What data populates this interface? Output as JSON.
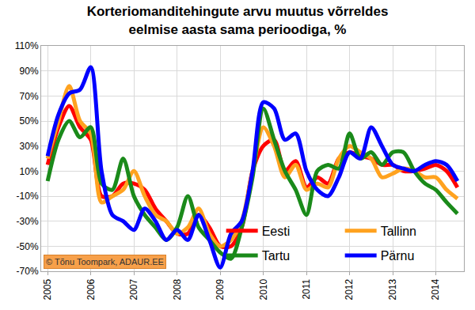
{
  "chart_data": {
    "type": "line",
    "title": "Korteriomanditehingute arvu muutus võrreldes\neelmise aasta sama perioodiga, %",
    "annotations": [
      "© Tõnu Toompark, ADAUR.EE"
    ],
    "categories": [
      "2005",
      null,
      null,
      null,
      "2006",
      null,
      null,
      null,
      "2007",
      null,
      null,
      null,
      "2008",
      null,
      null,
      null,
      "2009",
      null,
      null,
      null,
      "2010",
      null,
      null,
      null,
      "2011",
      null,
      null,
      null,
      "2012",
      null,
      null,
      null,
      "2013",
      null,
      null,
      null,
      "2014",
      null,
      null
    ],
    "series": [
      {
        "name": "Eesti",
        "color": "#ff0000",
        "values": [
          15,
          45,
          62,
          45,
          35,
          -10,
          -10,
          0,
          0,
          -5,
          -20,
          -30,
          -40,
          -40,
          -25,
          -35,
          -50,
          -50,
          -35,
          10,
          30,
          35,
          10,
          18,
          -3,
          5,
          0,
          20,
          25,
          22,
          20,
          15,
          15,
          10,
          10,
          12,
          15,
          10,
          -3
        ]
      },
      {
        "name": "Tallinn",
        "color": "#ffa21f",
        "values": [
          20,
          50,
          78,
          50,
          40,
          -15,
          -10,
          -5,
          10,
          -10,
          -25,
          -30,
          -40,
          -35,
          -20,
          -40,
          -50,
          -45,
          -30,
          10,
          45,
          30,
          5,
          15,
          -5,
          0,
          -3,
          20,
          30,
          25,
          20,
          5,
          8,
          12,
          10,
          5,
          5,
          -5,
          -12
        ]
      },
      {
        "name": "Tartu",
        "color": "#1a8a1a",
        "values": [
          2,
          35,
          50,
          37,
          45,
          0,
          -5,
          20,
          -10,
          -25,
          -35,
          -45,
          -35,
          -10,
          -35,
          -45,
          -55,
          -60,
          -35,
          5,
          60,
          35,
          10,
          -5,
          -25,
          10,
          15,
          12,
          40,
          20,
          25,
          15,
          25,
          25,
          10,
          0,
          -5,
          -15,
          -24
        ]
      },
      {
        "name": "Pärnu",
        "color": "#0000ff",
        "values": [
          22,
          55,
          72,
          75,
          93,
          10,
          -25,
          -30,
          -37,
          -20,
          -30,
          -45,
          -37,
          -45,
          -25,
          -45,
          -67,
          -40,
          -30,
          10,
          65,
          60,
          35,
          40,
          10,
          -5,
          -10,
          5,
          25,
          20,
          45,
          30,
          15,
          12,
          10,
          15,
          18,
          15,
          2
        ]
      }
    ],
    "ylim": [
      -70,
      110
    ],
    "yticks": [
      {
        "value": -70,
        "label": "-70%"
      },
      {
        "value": -50,
        "label": "-50%"
      },
      {
        "value": -30,
        "label": "-30%"
      },
      {
        "value": -10,
        "label": "-10%"
      },
      {
        "value": 10,
        "label": "10%"
      },
      {
        "value": 30,
        "label": "30%"
      },
      {
        "value": 50,
        "label": "50%"
      },
      {
        "value": 70,
        "label": "70%"
      },
      {
        "value": 90,
        "label": "90%"
      },
      {
        "value": 110,
        "label": "110%"
      }
    ],
    "grid": true,
    "legend": "bottom right",
    "line_style": "smooth"
  }
}
